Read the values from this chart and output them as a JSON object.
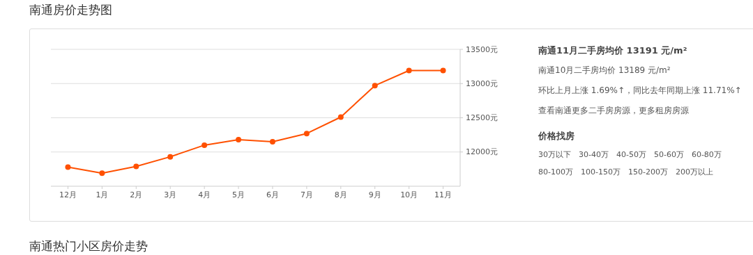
{
  "chart_data": [
    {
      "type": "line",
      "title": "南通房价走势图",
      "categories": [
        "12月",
        "1月",
        "2月",
        "3月",
        "4月",
        "5月",
        "6月",
        "7月",
        "8月",
        "9月",
        "10月",
        "11月"
      ],
      "series": [
        {
          "color": "#ff5000",
          "values": [
            11780,
            11690,
            11790,
            11930,
            12100,
            12180,
            12150,
            12270,
            12510,
            12970,
            13190,
            13190
          ]
        }
      ],
      "ylim": [
        11500,
        13500
      ],
      "yticks": [
        {
          "value": 12000,
          "label": "12000元"
        },
        {
          "value": 12500,
          "label": "12500元"
        },
        {
          "value": 13000,
          "label": "13000元"
        },
        {
          "value": 13500,
          "label": "13500元"
        }
      ],
      "grid": "y",
      "marker": "circle",
      "line_style": "solid",
      "annotations": [
        "南通热门小区房价走势"
      ]
    },
    {
      "type": "other",
      "annotations": [
        "南通11月二手房均价 13191 元/m²",
        "南通10月二手房均价 13189 元/m²",
        "环比上月上涨 1.69%↑，同比去年同期上涨 11.71%↑",
        "查看南通更多二手房房源，更多租房房源"
      ]
    },
    {
      "type": "other",
      "title": "价格找房",
      "annotations": [
        "30万以下",
        "30-40万",
        "40-50万",
        "50-60万",
        "60-80万",
        "80-100万",
        "100-150万",
        "150-200万",
        "200万以上"
      ]
    }
  ]
}
